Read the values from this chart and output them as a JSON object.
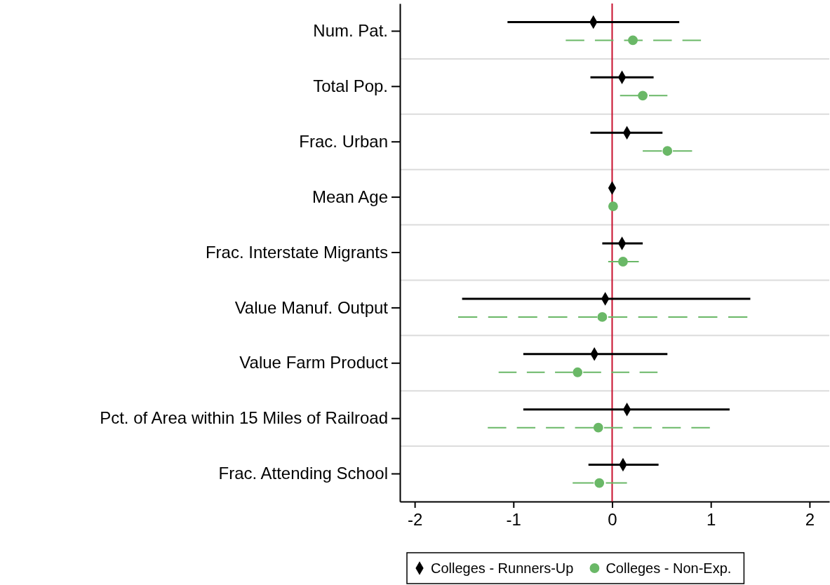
{
  "chart_data": {
    "type": "scatter",
    "orientation": "horizontal",
    "categories": [
      "Num. Pat.",
      "Total Pop.",
      "Frac. Urban",
      "Mean Age",
      "Frac. Interstate Migrants",
      "Value Manuf. Output",
      "Value Farm Product",
      "Pct. of Area within 15 Miles of Railroad",
      "Frac. Attending School"
    ],
    "series": [
      {
        "name": "Colleges - Runners-Up",
        "color": "#000000",
        "marker": "diamond",
        "line_style": "solid",
        "values": [
          -0.19,
          0.1,
          0.15,
          0,
          0.1,
          -0.07,
          -0.18,
          0.15,
          0.11
        ],
        "errors": [
          [
            -1.06,
            0.68
          ],
          [
            -0.22,
            0.42
          ],
          [
            -0.22,
            0.51
          ],
          null,
          [
            -0.1,
            0.31
          ],
          [
            -1.52,
            1.4
          ],
          [
            -0.9,
            0.56
          ],
          [
            -0.9,
            1.19
          ],
          [
            -0.24,
            0.47
          ]
        ]
      },
      {
        "name": "Colleges - Non-Exp.",
        "color": "#6ab867",
        "marker": "circle",
        "line_style": "dashed",
        "values": [
          0.21,
          0.31,
          0.56,
          0.01,
          0.11,
          -0.1,
          -0.35,
          -0.14,
          -0.13
        ],
        "errors": [
          [
            -0.47,
            0.9
          ],
          [
            0.08,
            0.56
          ],
          [
            0.31,
            0.81
          ],
          null,
          [
            -0.04,
            0.27
          ],
          [
            -1.56,
            1.37
          ],
          [
            -1.15,
            0.46
          ],
          [
            -1.26,
            0.99
          ],
          [
            -0.4,
            0.15
          ]
        ]
      }
    ],
    "xlim": [
      -2.15,
      2.2
    ],
    "xticks": [
      -2,
      -1,
      0,
      1,
      2
    ],
    "ref_lines": [
      {
        "axis": "x",
        "value": 0,
        "color": "#c8102e"
      }
    ],
    "grid": "y",
    "legend": "bottom"
  }
}
